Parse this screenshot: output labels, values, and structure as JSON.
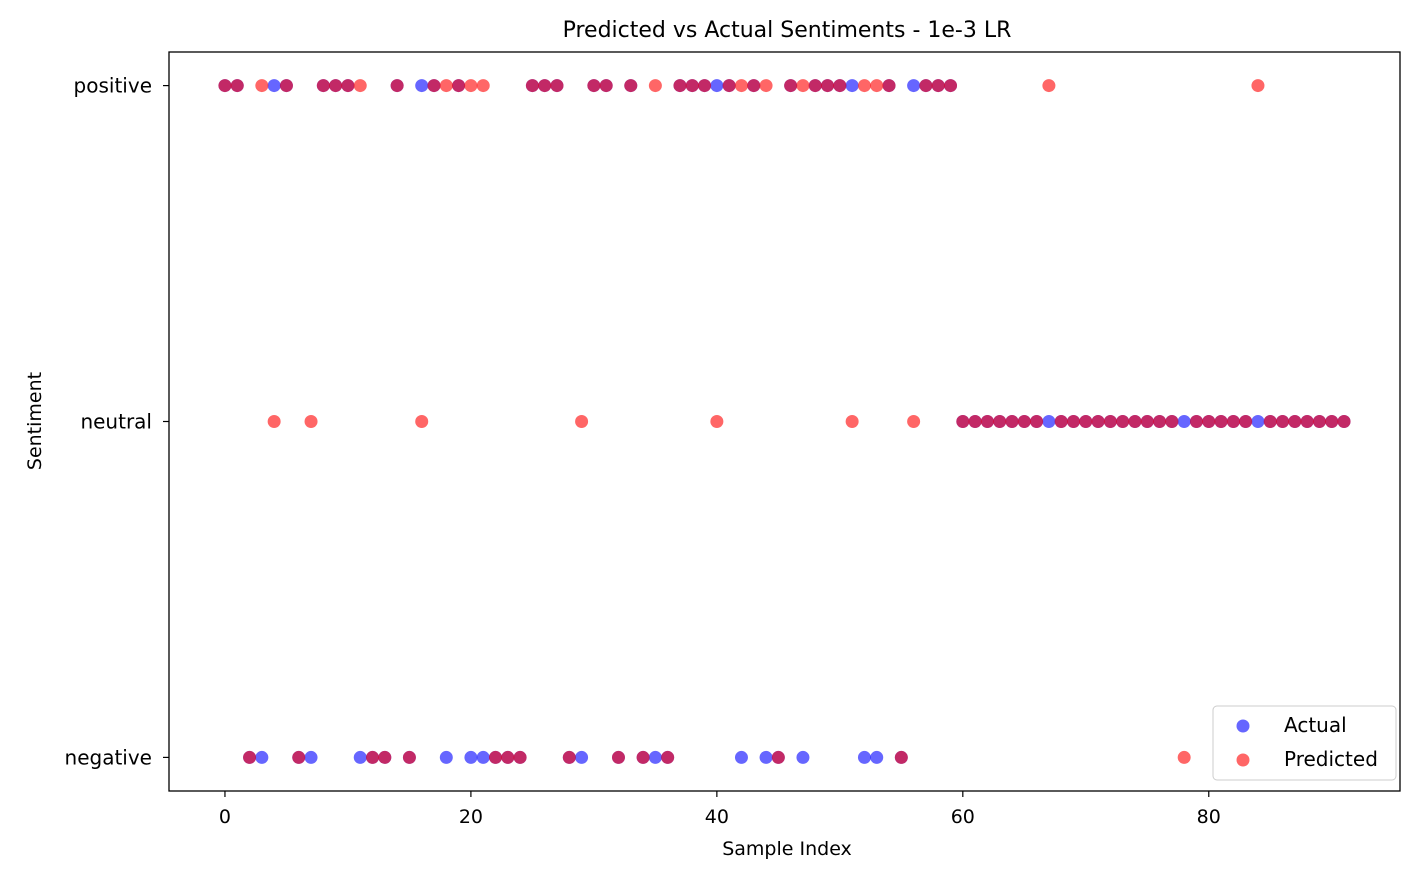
{
  "chart_data": {
    "type": "scatter",
    "title": "Predicted vs Actual Sentiments - 1e-3 LR",
    "xlabel": "Sample Index",
    "ylabel": "Sentiment",
    "xlim": [
      -4.55,
      95.55
    ],
    "x_ticks": [
      0,
      20,
      40,
      60,
      80
    ],
    "categories": [
      "negative",
      "neutral",
      "positive"
    ],
    "grid": false,
    "legend_position": "lower right",
    "series": [
      {
        "name": "Actual",
        "color": "#0000ff",
        "alpha": 0.6,
        "x": [
          0,
          1,
          2,
          3,
          4,
          5,
          6,
          7,
          8,
          9,
          10,
          11,
          12,
          13,
          14,
          15,
          16,
          17,
          18,
          19,
          20,
          21,
          22,
          23,
          24,
          25,
          26,
          27,
          28,
          29,
          30,
          31,
          32,
          33,
          34,
          35,
          36,
          37,
          38,
          39,
          40,
          41,
          42,
          43,
          44,
          45,
          46,
          47,
          48,
          49,
          50,
          51,
          52,
          53,
          54,
          55,
          56,
          57,
          58,
          59,
          60,
          61,
          62,
          63,
          64,
          65,
          66,
          67,
          68,
          69,
          70,
          71,
          72,
          73,
          74,
          75,
          76,
          77,
          78,
          79,
          80,
          81,
          82,
          83,
          84,
          85,
          86,
          87,
          88,
          89,
          90,
          91
        ],
        "y": [
          "positive",
          "positive",
          "negative",
          "negative",
          "positive",
          "positive",
          "negative",
          "negative",
          "positive",
          "positive",
          "positive",
          "negative",
          "negative",
          "negative",
          "positive",
          "negative",
          "positive",
          "positive",
          "negative",
          "positive",
          "negative",
          "negative",
          "negative",
          "negative",
          "negative",
          "positive",
          "positive",
          "positive",
          "negative",
          "negative",
          "positive",
          "positive",
          "negative",
          "positive",
          "negative",
          "negative",
          "negative",
          "positive",
          "positive",
          "positive",
          "positive",
          "positive",
          "negative",
          "positive",
          "negative",
          "negative",
          "positive",
          "negative",
          "positive",
          "positive",
          "positive",
          "positive",
          "negative",
          "negative",
          "positive",
          "negative",
          "positive",
          "positive",
          "positive",
          "positive",
          "neutral",
          "neutral",
          "neutral",
          "neutral",
          "neutral",
          "neutral",
          "neutral",
          "neutral",
          "neutral",
          "neutral",
          "neutral",
          "neutral",
          "neutral",
          "neutral",
          "neutral",
          "neutral",
          "neutral",
          "neutral",
          "neutral",
          "neutral",
          "neutral",
          "neutral",
          "neutral",
          "neutral",
          "neutral",
          "neutral",
          "neutral",
          "neutral",
          "neutral",
          "neutral",
          "neutral",
          "neutral"
        ]
      },
      {
        "name": "Predicted",
        "color": "#ff0000",
        "alpha": 0.6,
        "x": [
          0,
          1,
          2,
          3,
          4,
          5,
          6,
          7,
          8,
          9,
          10,
          11,
          12,
          13,
          14,
          15,
          16,
          17,
          18,
          19,
          20,
          21,
          22,
          23,
          24,
          25,
          26,
          27,
          28,
          29,
          30,
          31,
          32,
          33,
          34,
          35,
          36,
          37,
          38,
          39,
          40,
          41,
          42,
          43,
          44,
          45,
          46,
          47,
          48,
          49,
          50,
          51,
          52,
          53,
          54,
          55,
          56,
          57,
          58,
          59,
          60,
          61,
          62,
          63,
          64,
          65,
          66,
          67,
          68,
          69,
          70,
          71,
          72,
          73,
          74,
          75,
          76,
          77,
          78,
          79,
          80,
          81,
          82,
          83,
          84,
          85,
          86,
          87,
          88,
          89,
          90,
          91
        ],
        "y": [
          "positive",
          "positive",
          "negative",
          "positive",
          "neutral",
          "positive",
          "negative",
          "neutral",
          "positive",
          "positive",
          "positive",
          "positive",
          "negative",
          "negative",
          "positive",
          "negative",
          "neutral",
          "positive",
          "positive",
          "positive",
          "positive",
          "positive",
          "negative",
          "negative",
          "negative",
          "positive",
          "positive",
          "positive",
          "negative",
          "neutral",
          "positive",
          "positive",
          "negative",
          "positive",
          "negative",
          "positive",
          "negative",
          "positive",
          "positive",
          "positive",
          "neutral",
          "positive",
          "positive",
          "positive",
          "positive",
          "negative",
          "positive",
          "positive",
          "positive",
          "positive",
          "positive",
          "neutral",
          "positive",
          "positive",
          "positive",
          "negative",
          "neutral",
          "positive",
          "positive",
          "positive",
          "neutral",
          "neutral",
          "neutral",
          "neutral",
          "neutral",
          "neutral",
          "neutral",
          "positive",
          "neutral",
          "neutral",
          "neutral",
          "neutral",
          "neutral",
          "neutral",
          "neutral",
          "neutral",
          "neutral",
          "neutral",
          "negative",
          "neutral",
          "neutral",
          "neutral",
          "neutral",
          "neutral",
          "positive",
          "neutral",
          "neutral",
          "neutral",
          "neutral",
          "neutral",
          "neutral",
          "neutral"
        ]
      }
    ]
  }
}
